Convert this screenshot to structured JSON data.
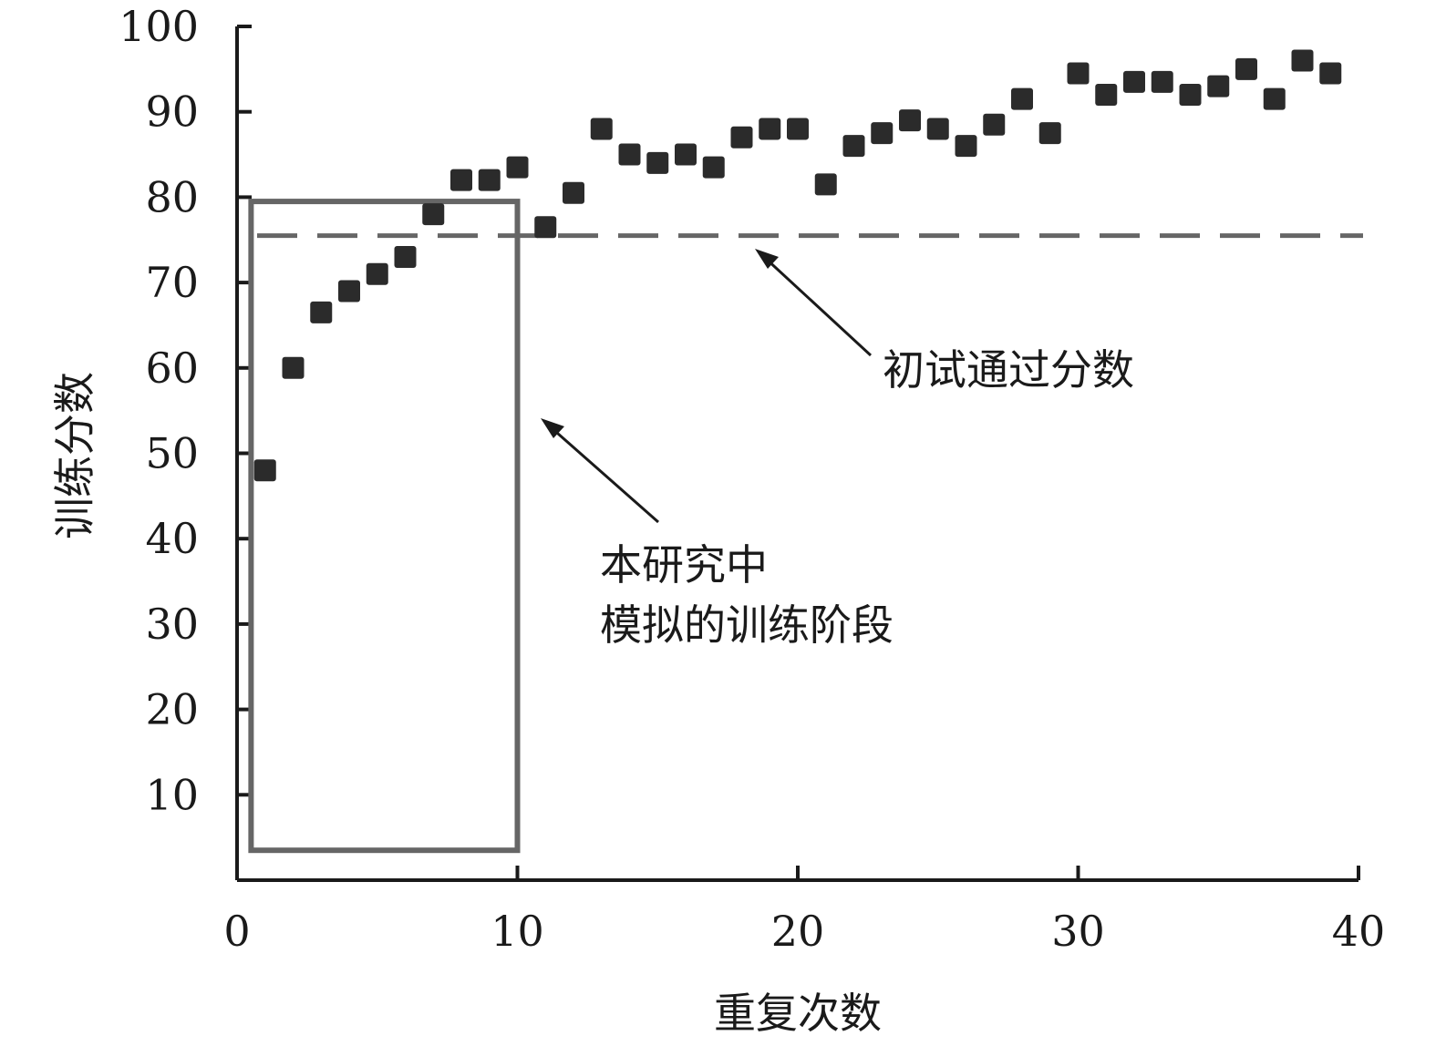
{
  "chart_data": {
    "type": "scatter",
    "title": "",
    "xlabel": "重复次数",
    "ylabel": "训练分数",
    "xlim": [
      0,
      40
    ],
    "ylim": [
      0,
      100
    ],
    "x_ticks": [
      0,
      10,
      20,
      30,
      40
    ],
    "y_ticks": [
      10,
      20,
      30,
      40,
      50,
      60,
      70,
      80,
      90,
      100
    ],
    "grid": false,
    "legend": "none",
    "marker_color": "#2b2b2b",
    "series": [
      {
        "x": [
          1,
          2,
          3,
          4,
          5,
          6,
          7,
          8,
          9,
          10,
          11,
          12,
          13,
          14,
          15,
          16,
          17,
          18,
          19,
          20,
          21,
          22,
          23,
          24,
          25,
          26,
          27,
          28,
          29,
          30,
          31,
          32,
          33,
          34,
          35,
          36,
          37,
          38,
          39
        ],
        "y": [
          48,
          60,
          66.5,
          69,
          71,
          73,
          78,
          82,
          82,
          83.5,
          76.5,
          80.5,
          88,
          85,
          84,
          85,
          83.5,
          87,
          88,
          88,
          81.5,
          86,
          87.5,
          89,
          88,
          86,
          88.5,
          91.5,
          87.5,
          94.5,
          92,
          93.5,
          93.5,
          92,
          93,
          95,
          91.5,
          96,
          94.5
        ]
      }
    ],
    "reference_line": {
      "y": 75.5,
      "style": "dashed",
      "color": "#666666",
      "label": "初试通过分数"
    },
    "highlight_region": {
      "x_range": [
        0.5,
        10
      ],
      "y_range": [
        3.5,
        79.5
      ],
      "color": "#666666",
      "label_line1": "本研究中",
      "label_line2": "模拟的训练阶段"
    }
  }
}
